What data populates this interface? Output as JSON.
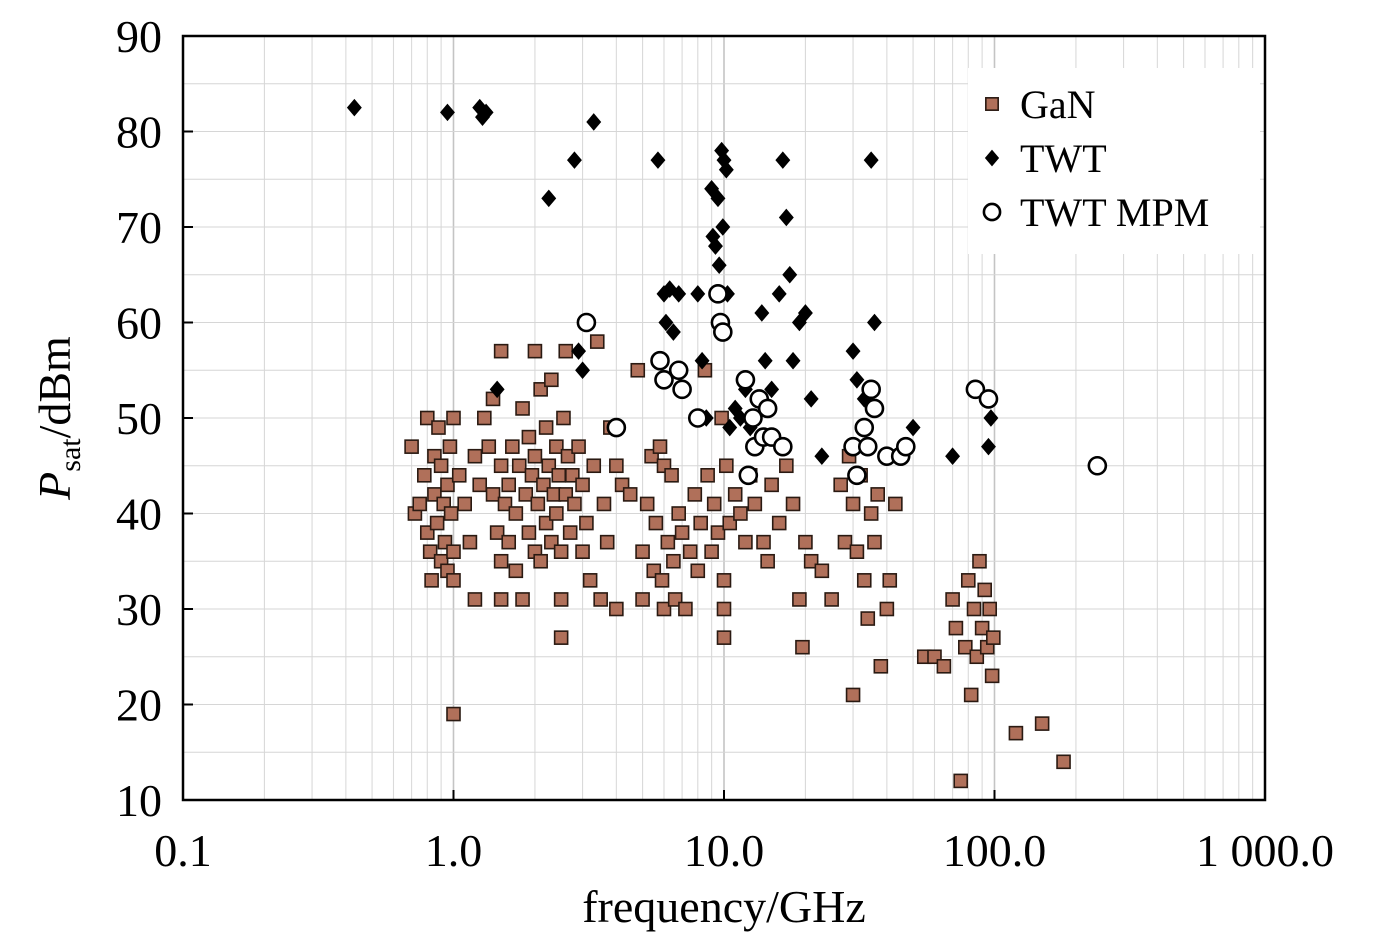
{
  "chart_data": {
    "type": "scatter",
    "xlabel": "frequency/GHz",
    "ylabel_main": "P",
    "ylabel_sub": "sat",
    "ylabel_tail": "/dBm",
    "x_scale": "log",
    "xlim": [
      0.1,
      1000
    ],
    "ylim": [
      10,
      90
    ],
    "x_ticks": [
      {
        "value": 0.1,
        "label": "0.1"
      },
      {
        "value": 1,
        "label": "1.0"
      },
      {
        "value": 10,
        "label": "10.0"
      },
      {
        "value": 100,
        "label": "100.0"
      },
      {
        "value": 1000,
        "label": "1 000.0"
      }
    ],
    "y_ticks": [
      {
        "value": 10,
        "label": "10"
      },
      {
        "value": 20,
        "label": "20"
      },
      {
        "value": 30,
        "label": "30"
      },
      {
        "value": 40,
        "label": "40"
      },
      {
        "value": 50,
        "label": "50"
      },
      {
        "value": 60,
        "label": "60"
      },
      {
        "value": 70,
        "label": "70"
      },
      {
        "value": 80,
        "label": "80"
      },
      {
        "value": 90,
        "label": "90"
      }
    ],
    "grid": true,
    "legend_position": "top-right",
    "series": [
      {
        "name": "GaN",
        "marker": "square",
        "color": "#b0705a",
        "edge": "#2a1a12",
        "points": [
          [
            0.7,
            47
          ],
          [
            0.72,
            40
          ],
          [
            0.75,
            41
          ],
          [
            0.78,
            44
          ],
          [
            0.8,
            50
          ],
          [
            0.8,
            38
          ],
          [
            0.82,
            36
          ],
          [
            0.83,
            33
          ],
          [
            0.85,
            46
          ],
          [
            0.85,
            42
          ],
          [
            0.87,
            39
          ],
          [
            0.88,
            49
          ],
          [
            0.9,
            45
          ],
          [
            0.9,
            35
          ],
          [
            0.92,
            41
          ],
          [
            0.93,
            37
          ],
          [
            0.95,
            43
          ],
          [
            0.95,
            34
          ],
          [
            0.97,
            47
          ],
          [
            0.98,
            40
          ],
          [
            1.0,
            50
          ],
          [
            1.0,
            36
          ],
          [
            1.0,
            33
          ],
          [
            1.0,
            19
          ],
          [
            1.05,
            44
          ],
          [
            1.1,
            41
          ],
          [
            1.15,
            37
          ],
          [
            1.2,
            46
          ],
          [
            1.2,
            31
          ],
          [
            1.25,
            43
          ],
          [
            1.3,
            50
          ],
          [
            1.35,
            47
          ],
          [
            1.4,
            52
          ],
          [
            1.4,
            42
          ],
          [
            1.45,
            38
          ],
          [
            1.5,
            57
          ],
          [
            1.5,
            45
          ],
          [
            1.5,
            35
          ],
          [
            1.5,
            31
          ],
          [
            1.55,
            41
          ],
          [
            1.6,
            43
          ],
          [
            1.6,
            37
          ],
          [
            1.65,
            47
          ],
          [
            1.7,
            40
          ],
          [
            1.7,
            34
          ],
          [
            1.75,
            45
          ],
          [
            1.8,
            51
          ],
          [
            1.8,
            31
          ],
          [
            1.85,
            42
          ],
          [
            1.9,
            48
          ],
          [
            1.9,
            38
          ],
          [
            1.95,
            44
          ],
          [
            2.0,
            57
          ],
          [
            2.0,
            36
          ],
          [
            2.0,
            46
          ],
          [
            2.05,
            41
          ],
          [
            2.1,
            53
          ],
          [
            2.1,
            35
          ],
          [
            2.15,
            43
          ],
          [
            2.2,
            49
          ],
          [
            2.2,
            39
          ],
          [
            2.25,
            45
          ],
          [
            2.3,
            54
          ],
          [
            2.3,
            37
          ],
          [
            2.35,
            42
          ],
          [
            2.4,
            47
          ],
          [
            2.4,
            40
          ],
          [
            2.45,
            44
          ],
          [
            2.5,
            31
          ],
          [
            2.5,
            27
          ],
          [
            2.5,
            36
          ],
          [
            2.55,
            50
          ],
          [
            2.6,
            57
          ],
          [
            2.6,
            42
          ],
          [
            2.65,
            46
          ],
          [
            2.7,
            38
          ],
          [
            2.75,
            44
          ],
          [
            2.8,
            41
          ],
          [
            2.9,
            47
          ],
          [
            3.0,
            43
          ],
          [
            3.0,
            36
          ],
          [
            3.1,
            39
          ],
          [
            3.2,
            33
          ],
          [
            3.3,
            45
          ],
          [
            3.4,
            58
          ],
          [
            3.5,
            31
          ],
          [
            3.6,
            41
          ],
          [
            3.7,
            37
          ],
          [
            3.8,
            49
          ],
          [
            4.0,
            30
          ],
          [
            4.0,
            45
          ],
          [
            4.2,
            43
          ],
          [
            4.5,
            42
          ],
          [
            4.8,
            55
          ],
          [
            5.0,
            36
          ],
          [
            5.0,
            31
          ],
          [
            5.2,
            41
          ],
          [
            5.4,
            46
          ],
          [
            5.5,
            34
          ],
          [
            5.6,
            39
          ],
          [
            5.8,
            47
          ],
          [
            5.9,
            33
          ],
          [
            6.0,
            45
          ],
          [
            6.0,
            30
          ],
          [
            6.2,
            37
          ],
          [
            6.4,
            44
          ],
          [
            6.5,
            35
          ],
          [
            6.6,
            31
          ],
          [
            6.8,
            40
          ],
          [
            7.0,
            38
          ],
          [
            7.2,
            30
          ],
          [
            7.5,
            36
          ],
          [
            7.8,
            42
          ],
          [
            8.0,
            34
          ],
          [
            8.2,
            39
          ],
          [
            8.5,
            55
          ],
          [
            8.7,
            44
          ],
          [
            9.0,
            36
          ],
          [
            9.2,
            41
          ],
          [
            9.5,
            38
          ],
          [
            9.8,
            50
          ],
          [
            10.0,
            27
          ],
          [
            10.0,
            30
          ],
          [
            10.0,
            33
          ],
          [
            10.2,
            45
          ],
          [
            10.5,
            39
          ],
          [
            11.0,
            42
          ],
          [
            11.5,
            40
          ],
          [
            12.0,
            37
          ],
          [
            12.5,
            44
          ],
          [
            13.0,
            41
          ],
          [
            14.0,
            37
          ],
          [
            14.5,
            35
          ],
          [
            15.0,
            43
          ],
          [
            16.0,
            39
          ],
          [
            17.0,
            45
          ],
          [
            18.0,
            41
          ],
          [
            19.0,
            31
          ],
          [
            19.5,
            26
          ],
          [
            20.0,
            37
          ],
          [
            21.0,
            35
          ],
          [
            23.0,
            34
          ],
          [
            25.0,
            31
          ],
          [
            27.0,
            43
          ],
          [
            28.0,
            37
          ],
          [
            29.0,
            46
          ],
          [
            30.0,
            21
          ],
          [
            30.0,
            41
          ],
          [
            31.0,
            36
          ],
          [
            32.0,
            44
          ],
          [
            33.0,
            33
          ],
          [
            34.0,
            29
          ],
          [
            35.0,
            40
          ],
          [
            36.0,
            37
          ],
          [
            37.0,
            42
          ],
          [
            38.0,
            24
          ],
          [
            40.0,
            30
          ],
          [
            41.0,
            33
          ],
          [
            43.0,
            41
          ],
          [
            55.0,
            25
          ],
          [
            60.0,
            25
          ],
          [
            65.0,
            24
          ],
          [
            70.0,
            31
          ],
          [
            72.0,
            28
          ],
          [
            75.0,
            12
          ],
          [
            78.0,
            26
          ],
          [
            80.0,
            33
          ],
          [
            82.0,
            21
          ],
          [
            84.0,
            30
          ],
          [
            86.0,
            25
          ],
          [
            88.0,
            35
          ],
          [
            90.0,
            28
          ],
          [
            92.0,
            32
          ],
          [
            94.0,
            26
          ],
          [
            96.0,
            30
          ],
          [
            98.0,
            23
          ],
          [
            99.0,
            27
          ],
          [
            120.0,
            17
          ],
          [
            150.0,
            18
          ],
          [
            180.0,
            14
          ]
        ]
      },
      {
        "name": "TWT",
        "marker": "diamond",
        "color": "#000000",
        "edge": "#000000",
        "points": [
          [
            0.43,
            82.5
          ],
          [
            0.95,
            82
          ],
          [
            1.25,
            82.5
          ],
          [
            1.28,
            81.5
          ],
          [
            1.32,
            82
          ],
          [
            1.45,
            53
          ],
          [
            2.25,
            73
          ],
          [
            2.8,
            77
          ],
          [
            2.9,
            57
          ],
          [
            3.0,
            55
          ],
          [
            3.3,
            81
          ],
          [
            5.7,
            77
          ],
          [
            6.0,
            63
          ],
          [
            6.1,
            60
          ],
          [
            6.3,
            63.5
          ],
          [
            6.5,
            59
          ],
          [
            6.8,
            63
          ],
          [
            8.0,
            63
          ],
          [
            8.3,
            56
          ],
          [
            8.6,
            50
          ],
          [
            9.0,
            74
          ],
          [
            9.1,
            69
          ],
          [
            9.3,
            68
          ],
          [
            9.5,
            73
          ],
          [
            9.6,
            66
          ],
          [
            9.8,
            78
          ],
          [
            9.9,
            70
          ],
          [
            10.0,
            77
          ],
          [
            10.2,
            76
          ],
          [
            10.3,
            63
          ],
          [
            10.5,
            49
          ],
          [
            11.0,
            51
          ],
          [
            11.5,
            50
          ],
          [
            12.0,
            53
          ],
          [
            12.5,
            49
          ],
          [
            13.0,
            50
          ],
          [
            13.8,
            61
          ],
          [
            14.2,
            56
          ],
          [
            15.0,
            53
          ],
          [
            16.0,
            63
          ],
          [
            16.5,
            77
          ],
          [
            17.0,
            71
          ],
          [
            17.5,
            65
          ],
          [
            18.0,
            56
          ],
          [
            19.0,
            60
          ],
          [
            20.0,
            61
          ],
          [
            21.0,
            52
          ],
          [
            23.0,
            46
          ],
          [
            30.0,
            57
          ],
          [
            31.0,
            54
          ],
          [
            33.0,
            52
          ],
          [
            35.0,
            77
          ],
          [
            36.0,
            60
          ],
          [
            40.0,
            46
          ],
          [
            50.0,
            49
          ],
          [
            70.0,
            46
          ],
          [
            95.0,
            47
          ],
          [
            97.0,
            50
          ]
        ]
      },
      {
        "name": "TWT MPM",
        "marker": "circle",
        "color": "#ffffff",
        "edge": "#000000",
        "points": [
          [
            3.1,
            60
          ],
          [
            4.0,
            49
          ],
          [
            5.8,
            56
          ],
          [
            6.0,
            54
          ],
          [
            6.8,
            55
          ],
          [
            7.0,
            53
          ],
          [
            8.0,
            50
          ],
          [
            9.5,
            63
          ],
          [
            9.7,
            60
          ],
          [
            9.9,
            59
          ],
          [
            12.0,
            54
          ],
          [
            12.3,
            44
          ],
          [
            12.8,
            50
          ],
          [
            13.0,
            47
          ],
          [
            13.5,
            52
          ],
          [
            14.0,
            48
          ],
          [
            14.5,
            51
          ],
          [
            15.0,
            48
          ],
          [
            16.5,
            47
          ],
          [
            30.0,
            47
          ],
          [
            31.0,
            44
          ],
          [
            33.0,
            49
          ],
          [
            34.0,
            47
          ],
          [
            35.0,
            53
          ],
          [
            36.0,
            51
          ],
          [
            40.0,
            46
          ],
          [
            45.0,
            46
          ],
          [
            47.0,
            47
          ],
          [
            85.0,
            53
          ],
          [
            95.0,
            52
          ],
          [
            240.0,
            45
          ]
        ]
      }
    ]
  }
}
